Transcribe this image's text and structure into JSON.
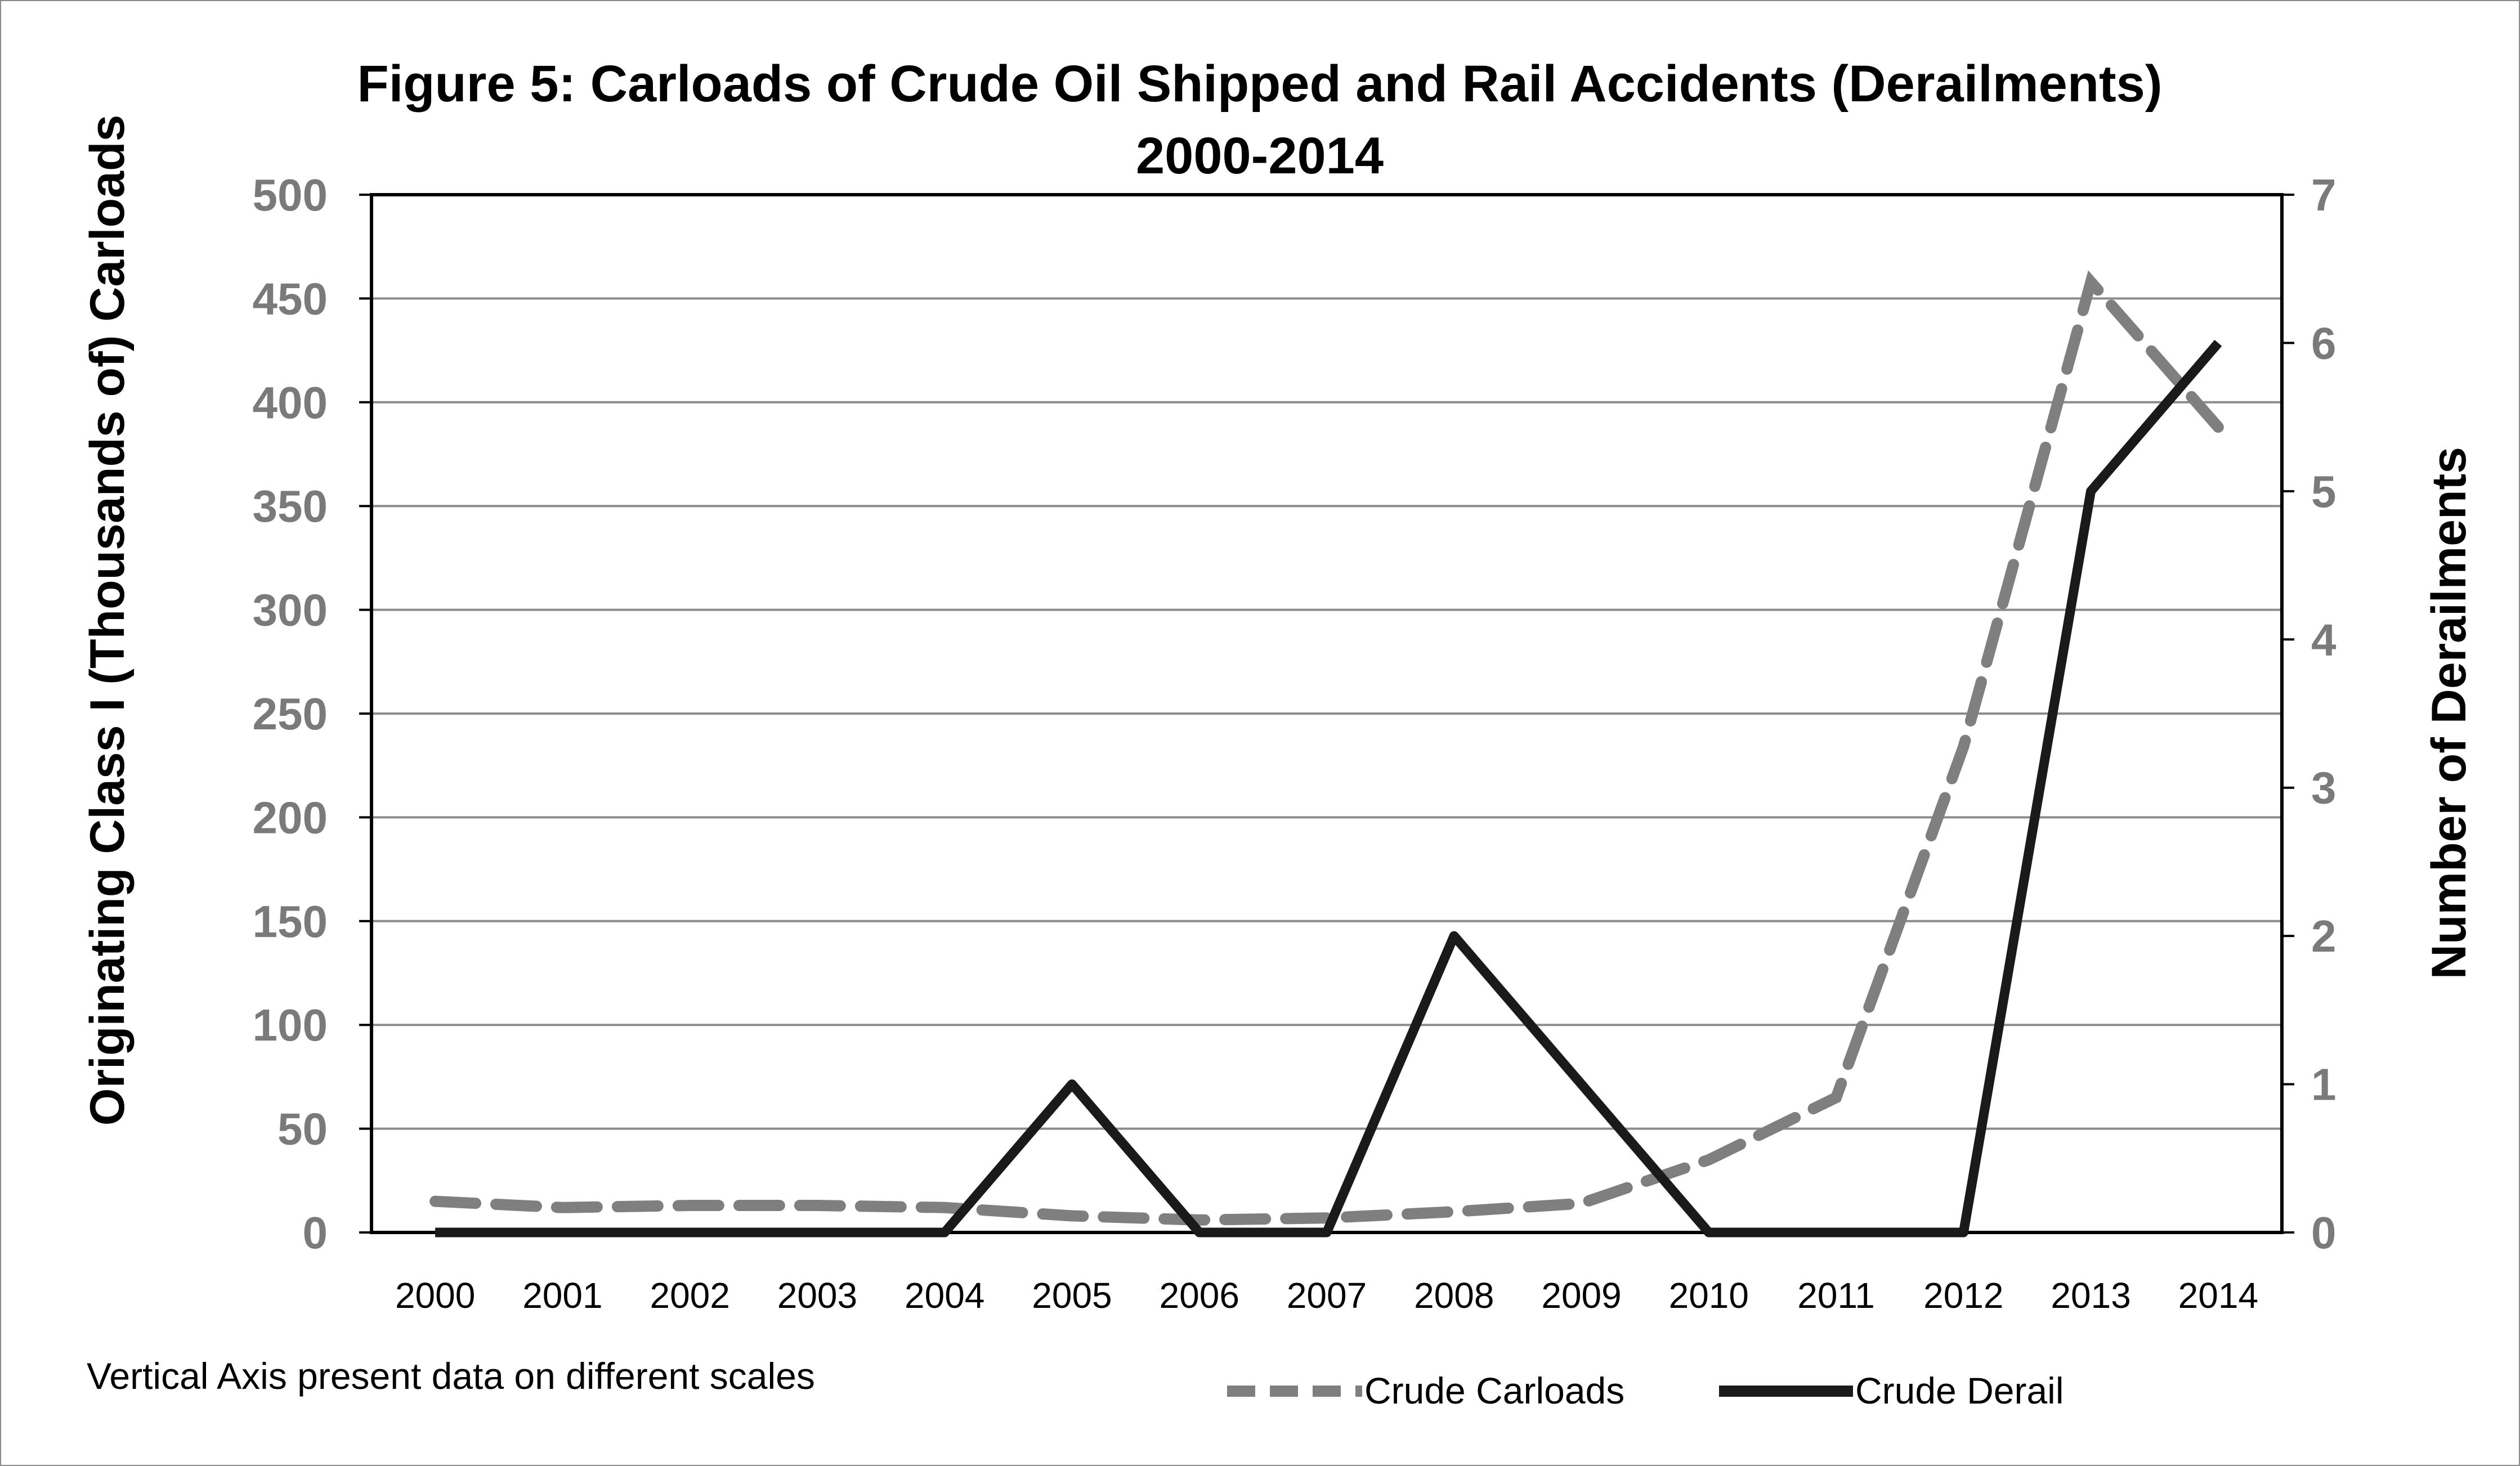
{
  "chart_data": {
    "type": "line",
    "title_line1": "Figure 5: Carloads of Crude Oil Shipped and Rail Accidents (Derailments)",
    "title_line2": "2000-2014",
    "ylabel_left": "Originating Class I (Thousands of) Carloads",
    "ylabel_right": "Number of Derailments",
    "xlabel": "",
    "categories": [
      "2000",
      "2001",
      "2002",
      "2003",
      "2004",
      "2005",
      "2006",
      "2007",
      "2008",
      "2009",
      "2010",
      "2011",
      "2012",
      "2013",
      "2014"
    ],
    "ylim_left": [
      0,
      500
    ],
    "yticks_left": [
      "0",
      "50",
      "100",
      "150",
      "200",
      "250",
      "300",
      "350",
      "400",
      "450",
      "500"
    ],
    "ylim_right": [
      0,
      7
    ],
    "yticks_right": [
      "0",
      "1",
      "2",
      "3",
      "4",
      "5",
      "6",
      "7"
    ],
    "grid": true,
    "note": "Vertical Axis present data on different scales",
    "series": [
      {
        "name": "Crude Carloads",
        "axis": "left",
        "style": "dashed",
        "color": "#7f7f7f",
        "values": [
          15,
          12,
          13,
          13,
          12,
          8,
          6,
          7,
          10,
          14,
          35,
          65,
          234,
          458,
          388
        ]
      },
      {
        "name": "Crude Derail",
        "axis": "right",
        "style": "solid",
        "color": "#1a1a1a",
        "values": [
          0,
          0,
          0,
          0,
          0,
          1,
          0,
          0,
          2,
          1,
          0,
          0,
          0,
          5,
          6
        ]
      }
    ]
  }
}
